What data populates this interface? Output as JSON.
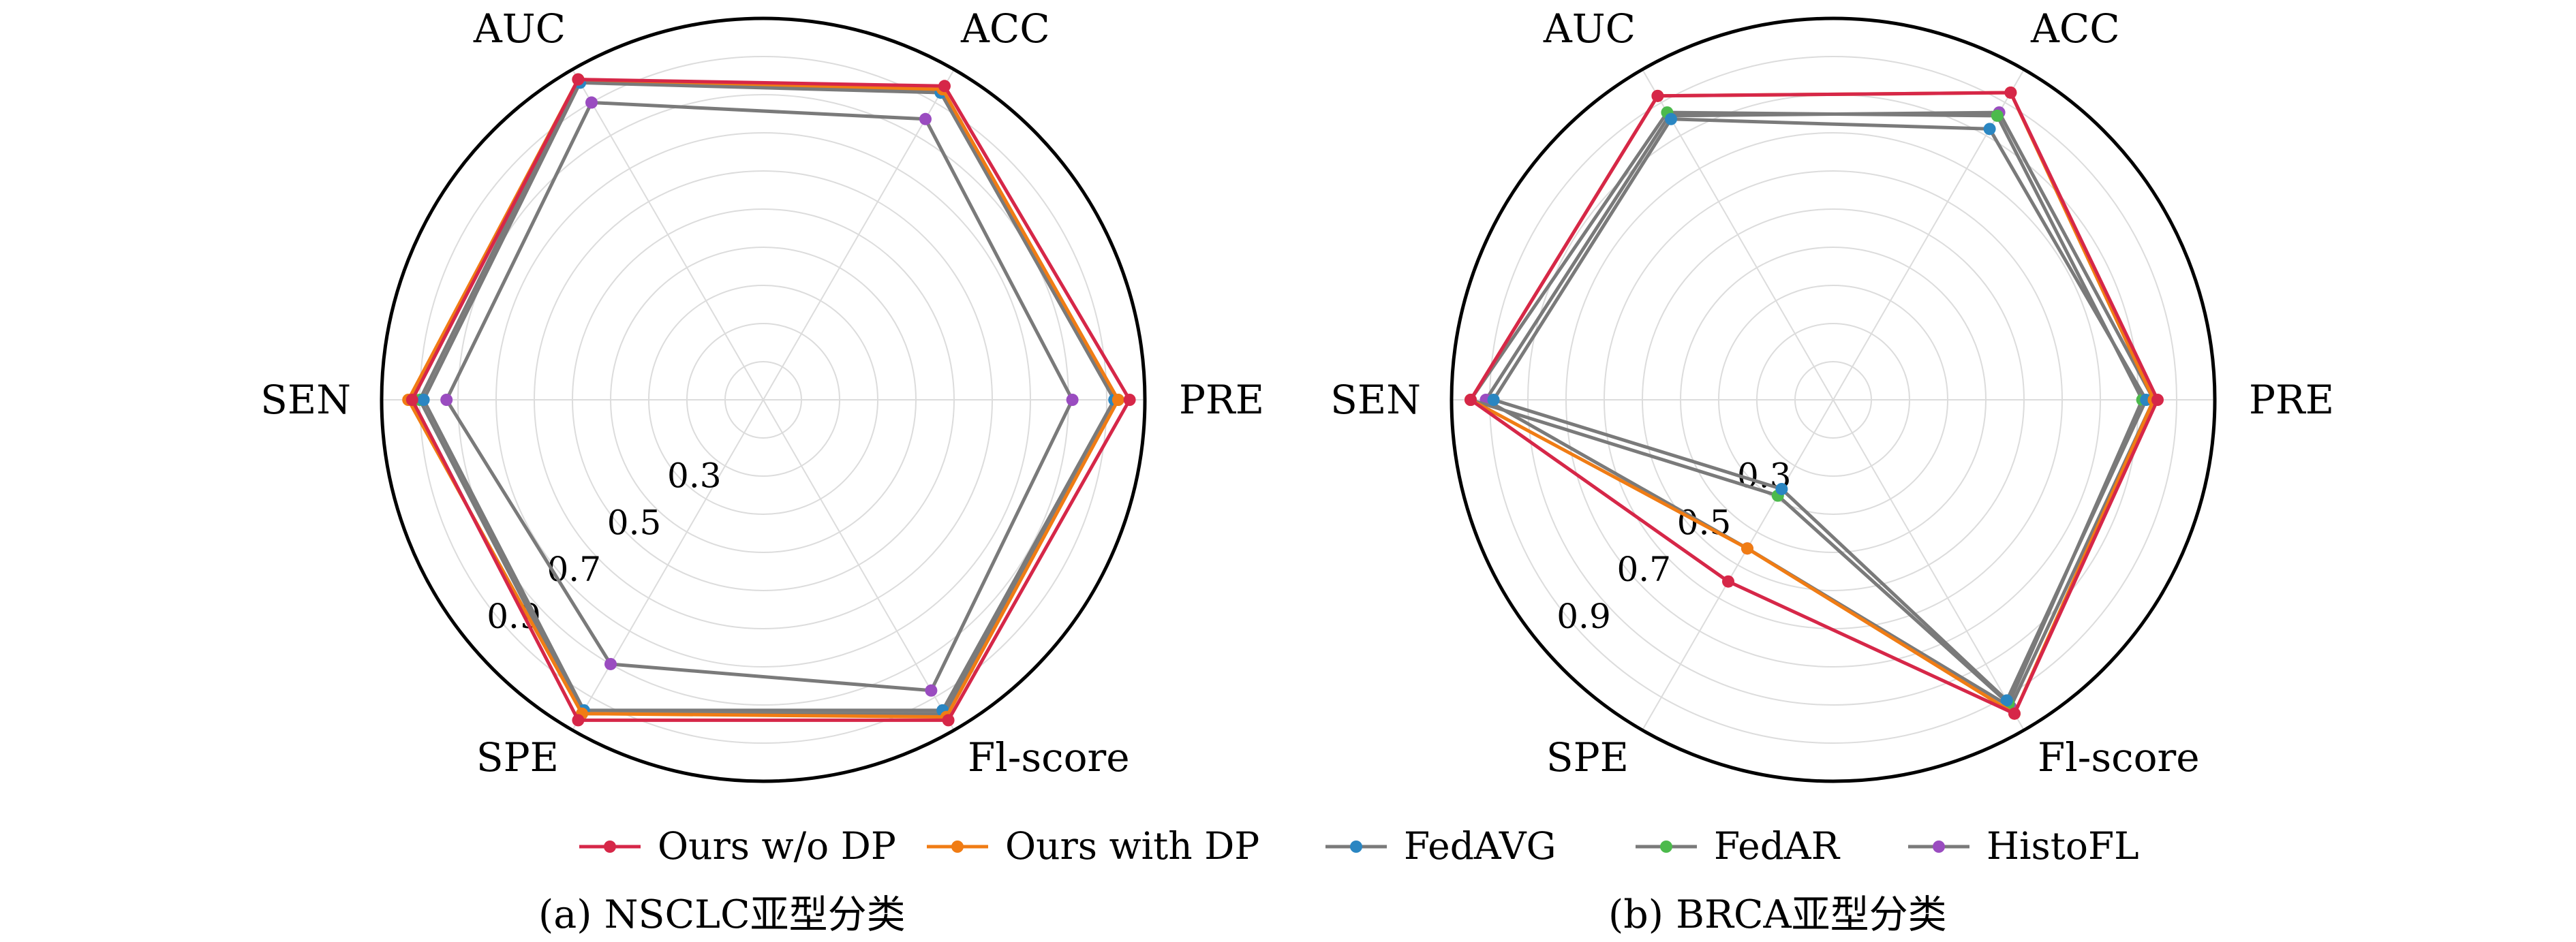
{
  "chart_data": [
    {
      "type": "radar",
      "caption": "(a) NSCLC亚型分类",
      "axes": [
        "AUC",
        "ACC",
        "PRE",
        "Fl-score",
        "SPE",
        "SEN"
      ],
      "r_ticks": [
        "0.3",
        "0.5",
        "0.7",
        "0.9"
      ],
      "rlim": [
        0.0,
        1.0
      ],
      "grid": true,
      "series": [
        {
          "name": "Ours w/o DP",
          "values": [
            0.97,
            0.95,
            0.96,
            0.97,
            0.97,
            0.92
          ]
        },
        {
          "name": "Ours with DP",
          "values": [
            0.97,
            0.94,
            0.93,
            0.96,
            0.95,
            0.93
          ]
        },
        {
          "name": "FedAVG",
          "values": [
            0.96,
            0.93,
            0.92,
            0.94,
            0.94,
            0.89
          ]
        },
        {
          "name": "FedAR",
          "values": [
            0.97,
            0.93,
            0.93,
            0.95,
            0.95,
            0.9
          ]
        },
        {
          "name": "HistoFL",
          "values": [
            0.9,
            0.85,
            0.81,
            0.88,
            0.8,
            0.83
          ]
        }
      ]
    },
    {
      "type": "radar",
      "caption": "(b) BRCA亚型分类",
      "axes": [
        "AUC",
        "ACC",
        "PRE",
        "Fl-score",
        "SPE",
        "SEN"
      ],
      "r_ticks": [
        "0.3",
        "0.5",
        "0.7",
        "0.9"
      ],
      "rlim": [
        0.0,
        1.0
      ],
      "grid": true,
      "series": [
        {
          "name": "Ours w/o DP",
          "values": [
            0.92,
            0.93,
            0.85,
            0.95,
            0.55,
            0.95
          ]
        },
        {
          "name": "Ours with DP",
          "values": [
            0.92,
            0.93,
            0.84,
            0.95,
            0.45,
            0.95
          ]
        },
        {
          "name": "FedAVG",
          "values": [
            0.85,
            0.82,
            0.82,
            0.91,
            0.27,
            0.89
          ]
        },
        {
          "name": "FedAR",
          "values": [
            0.87,
            0.86,
            0.81,
            0.92,
            0.29,
            0.95
          ]
        },
        {
          "name": "HistoFL",
          "values": [
            0.86,
            0.87,
            0.84,
            0.93,
            0.45,
            0.91
          ]
        }
      ]
    }
  ],
  "legend": {
    "position": "bottom-center",
    "items": [
      "Ours w/o DP",
      "Ours with DP",
      "FedAVG",
      "FedAR",
      "HistoFL"
    ]
  },
  "series_colors": {
    "Ours w/o DP": "#d62748",
    "Ours with DP": "#f07c14",
    "FedAVG": "#2a86c2",
    "FedAR": "#4cba4c",
    "HistoFL": "#9a4cc0",
    "line_color": "#7a7a7a",
    "line_color_first": "#d62748",
    "line_color_second": "#f07c14"
  }
}
